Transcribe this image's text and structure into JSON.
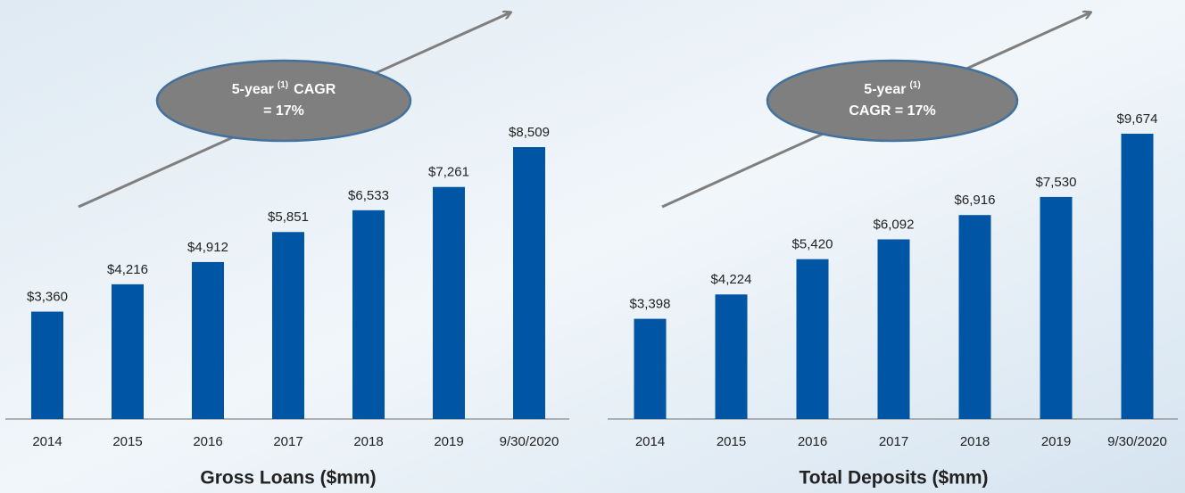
{
  "chart_data": [
    {
      "type": "bar",
      "title": "Gross Loans ($mm)",
      "categories": [
        "2014",
        "2015",
        "2016",
        "2017",
        "2018",
        "2019",
        "9/30/2020"
      ],
      "values": [
        3360,
        4216,
        4912,
        5851,
        6533,
        7261,
        8509
      ],
      "value_labels": [
        "$3,360",
        "$4,216",
        "$4,912",
        "$5,851",
        "$6,533",
        "$7,261",
        "$8,509"
      ],
      "color": "#0055a5",
      "annotation": {
        "lines": [
          [
            {
              "text": "5-year",
              "superscript": false
            },
            {
              "text": "(1)",
              "superscript": true
            },
            {
              "text": "CAGR",
              "superscript": false
            }
          ],
          [
            {
              "text": "= 17%",
              "superscript": false
            }
          ]
        ]
      }
    },
    {
      "type": "bar",
      "title": "Total Deposits ($mm)",
      "categories": [
        "2014",
        "2015",
        "2016",
        "2017",
        "2018",
        "2019",
        "9/30/2020"
      ],
      "values": [
        3398,
        4224,
        5420,
        6092,
        6916,
        7530,
        9674
      ],
      "value_labels": [
        "$3,398",
        "$4,224",
        "$5,420",
        "$6,092",
        "$6,916",
        "$7,530",
        "$9,674"
      ],
      "color": "#0055a5",
      "annotation": {
        "lines": [
          [
            {
              "text": "5-year",
              "superscript": false
            },
            {
              "text": "(1)",
              "superscript": true
            }
          ],
          [
            {
              "text": "CAGR = 17%",
              "superscript": false
            }
          ]
        ]
      }
    }
  ]
}
